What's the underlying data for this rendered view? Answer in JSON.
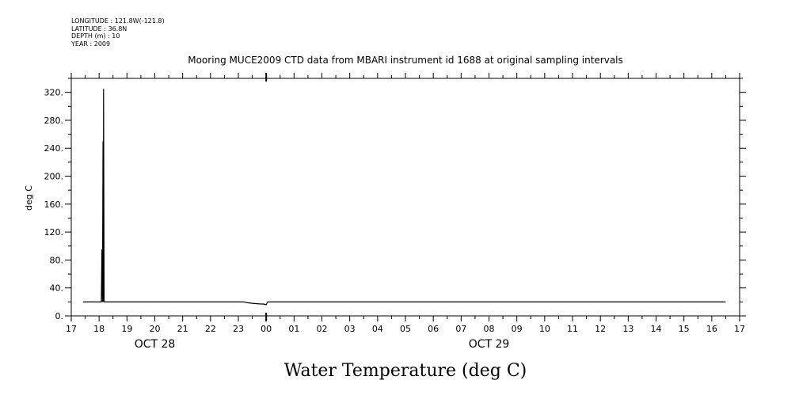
{
  "metadata": {
    "longitude": "LONGITUDE : 121.8W(-121.8)",
    "latitude": "LATITUDE : 36.8N",
    "depth": "DEPTH (m) : 10",
    "year": "YEAR : 2009"
  },
  "chart_data": {
    "type": "line",
    "title": "Mooring MUCE2009 CTD data from MBARI instrument id 1688 at original sampling intervals",
    "ylabel": "deg C",
    "xlabel": "Water Temperature (deg C)",
    "ylim": [
      0,
      340
    ],
    "yticks": [
      0,
      40,
      80,
      120,
      160,
      200,
      240,
      280,
      320
    ],
    "ytick_labels": [
      "0.",
      "40.",
      "80.",
      "120.",
      "160.",
      "200.",
      "240.",
      "280.",
      "320."
    ],
    "xlim": [
      17,
      41
    ],
    "xtick_labels": [
      "17",
      "18",
      "19",
      "20",
      "21",
      "22",
      "23",
      "00",
      "01",
      "02",
      "03",
      "04",
      "05",
      "06",
      "07",
      "08",
      "09",
      "10",
      "11",
      "12",
      "13",
      "14",
      "15",
      "16",
      "17"
    ],
    "date_labels": [
      {
        "text": "OCT 28",
        "x": 20
      },
      {
        "text": "OCT 29",
        "x": 32
      }
    ],
    "line_color": "#000000",
    "series": [
      {
        "x": [
          17.42,
          18.05,
          18.08,
          18.1,
          18.12,
          18.14,
          18.15,
          18.16,
          18.18,
          18.2,
          18.25,
          22,
          23.2,
          23.3,
          23.5,
          23.8,
          23.9,
          24.0,
          24.05,
          24.2,
          25,
          30,
          35,
          40.5
        ],
        "y": [
          20,
          20,
          20,
          95,
          20,
          250,
          20,
          325,
          20,
          20,
          20,
          20,
          20,
          19,
          18,
          17,
          17,
          16,
          20,
          20,
          20,
          20,
          20,
          20
        ]
      }
    ]
  }
}
